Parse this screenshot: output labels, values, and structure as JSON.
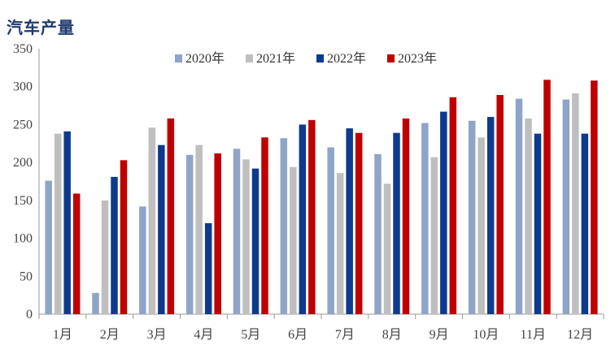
{
  "chart_data": {
    "type": "bar",
    "title": "汽车产量",
    "categories": [
      "1月",
      "2月",
      "3月",
      "4月",
      "5月",
      "6月",
      "7月",
      "8月",
      "9月",
      "10月",
      "11月",
      "12月"
    ],
    "series": [
      {
        "name": "2020年",
        "color": "#8ea5c8",
        "values": [
          176,
          28,
          142,
          210,
          218,
          232,
          220,
          211,
          252,
          255,
          284,
          283
        ]
      },
      {
        "name": "2021年",
        "color": "#bfbfbf",
        "values": [
          238,
          150,
          246,
          223,
          204,
          194,
          186,
          172,
          207,
          233,
          258,
          291
        ]
      },
      {
        "name": "2022年",
        "color": "#0d3b8c",
        "values": [
          241,
          181,
          223,
          120,
          192,
          250,
          245,
          239,
          267,
          260,
          238,
          238
        ]
      },
      {
        "name": "2023年",
        "color": "#c00000",
        "values": [
          159,
          203,
          258,
          212,
          233,
          256,
          239,
          258,
          286,
          289,
          309,
          308
        ]
      }
    ],
    "xlabel": "",
    "ylabel": "",
    "ylim": [
      0,
      350
    ],
    "yticks": [
      0,
      50,
      100,
      150,
      200,
      250,
      300,
      350
    ],
    "grid": false,
    "legend_position": "top-center"
  }
}
